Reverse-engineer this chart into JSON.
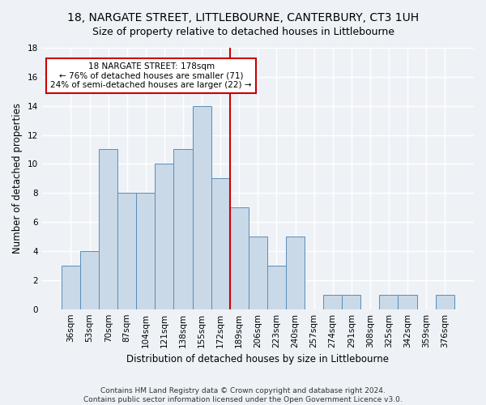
{
  "title": "18, NARGATE STREET, LITTLEBOURNE, CANTERBURY, CT3 1UH",
  "subtitle": "Size of property relative to detached houses in Littlebourne",
  "xlabel": "Distribution of detached houses by size in Littlebourne",
  "ylabel": "Number of detached properties",
  "footer_line1": "Contains HM Land Registry data © Crown copyright and database right 2024.",
  "footer_line2": "Contains public sector information licensed under the Open Government Licence v3.0.",
  "categories": [
    "36sqm",
    "53sqm",
    "70sqm",
    "87sqm",
    "104sqm",
    "121sqm",
    "138sqm",
    "155sqm",
    "172sqm",
    "189sqm",
    "206sqm",
    "223sqm",
    "240sqm",
    "257sqm",
    "274sqm",
    "291sqm",
    "308sqm",
    "325sqm",
    "342sqm",
    "359sqm",
    "376sqm"
  ],
  "values": [
    3,
    4,
    11,
    8,
    8,
    10,
    11,
    14,
    9,
    7,
    5,
    3,
    5,
    0,
    1,
    1,
    0,
    1,
    1,
    0,
    1
  ],
  "bar_color": "#c9d9e8",
  "bar_edge_color": "#5b8db8",
  "annotation_line1": "18 NARGATE STREET: 178sqm",
  "annotation_line2": "← 76% of detached houses are smaller (71)",
  "annotation_line3": "24% of semi-detached houses are larger (22) →",
  "annotation_box_color": "#ffffff",
  "annotation_box_edge_color": "#cc0000",
  "vline_color": "#cc0000",
  "vline_x_index": 8.5,
  "ylim": [
    0,
    18
  ],
  "background_color": "#eef2f7",
  "grid_color": "#ffffff",
  "title_fontsize": 10,
  "subtitle_fontsize": 9,
  "axis_label_fontsize": 8.5,
  "tick_fontsize": 7.5,
  "annotation_fontsize": 7.5,
  "footer_fontsize": 6.5
}
